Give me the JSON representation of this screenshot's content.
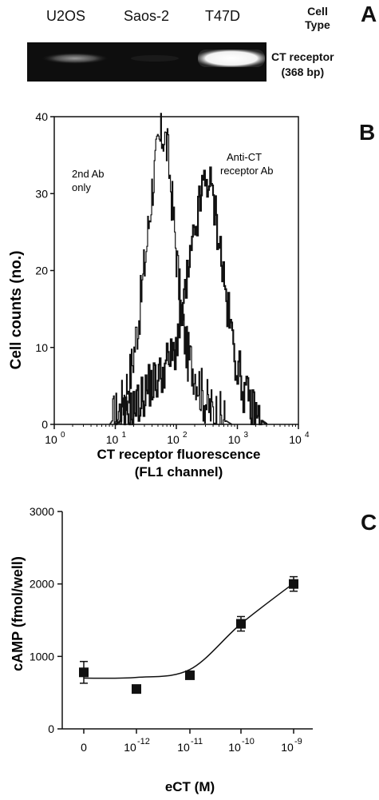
{
  "panel_a": {
    "letter": "A",
    "lanes": [
      "U2OS",
      "Saos-2",
      "T47D"
    ],
    "cell_type_label": [
      "Cell",
      "Type"
    ],
    "band_label": [
      "CT receptor",
      "(368 bp)"
    ],
    "band_intensity": [
      0.35,
      0.02,
      1.0
    ]
  },
  "panel_b": {
    "letter": "B",
    "ylabel": "Cell counts (no.)",
    "xlabel": [
      "CT receptor fluorescence",
      "(FL1 channel)"
    ],
    "annotation_left": [
      "2nd Ab",
      "only"
    ],
    "annotation_right": [
      "Anti-CT",
      "receptor Ab"
    ],
    "y_ticks": [
      "0",
      "10",
      "20",
      "30",
      "40"
    ],
    "x_tick_exponents": [
      "0",
      "1",
      "2",
      "3",
      "4"
    ]
  },
  "panel_c": {
    "letter": "C",
    "ylabel": "cAMP (fmol/well)",
    "xlabel": "eCT (M)",
    "y_ticks": [
      "0",
      "1000",
      "2000",
      "3000"
    ],
    "x_ticks": [
      {
        "base": "0",
        "exp": ""
      },
      {
        "base": "10",
        "exp": "-12"
      },
      {
        "base": "10",
        "exp": "-11"
      },
      {
        "base": "10",
        "exp": "-10"
      },
      {
        "base": "10",
        "exp": "-9"
      }
    ]
  },
  "chart_data": [
    {
      "type": "line",
      "xlabel": "CT receptor fluorescence (FL1 channel)",
      "ylabel": "Cell counts (no.)",
      "xscale": "log",
      "xlim": [
        1,
        10000
      ],
      "ylim": [
        0,
        40
      ],
      "grid": false,
      "series": [
        {
          "x": [
            8,
            12,
            18,
            25,
            32,
            40,
            50,
            60,
            70,
            80,
            95,
            120,
            150,
            200,
            260,
            350,
            500,
            800
          ],
          "y": [
            0,
            2,
            7,
            15,
            23,
            31,
            36,
            38,
            36,
            31,
            24,
            14,
            9,
            7,
            4,
            2,
            1,
            0
          ]
        },
        {
          "x": [
            10,
            15,
            25,
            35,
            50,
            70,
            90,
            120,
            160,
            210,
            270,
            330,
            400,
            500,
            650,
            900,
            1300,
            2000,
            3000
          ],
          "y": [
            0,
            1,
            3,
            5,
            6,
            8,
            9,
            14,
            20,
            26,
            31,
            32,
            29,
            24,
            16,
            9,
            4,
            1,
            0
          ]
        }
      ]
    },
    {
      "type": "scatter",
      "xlabel": "eCT (M)",
      "ylabel": "cAMP (fmol/well)",
      "ylim": [
        0,
        3000
      ],
      "grid": false,
      "x": [
        "0",
        "1e-12",
        "1e-11",
        "1e-10",
        "1e-9"
      ],
      "values": [
        780,
        550,
        740,
        1450,
        2000
      ],
      "errors": [
        150,
        20,
        40,
        100,
        100
      ],
      "fit": [
        700,
        710,
        820,
        1450,
        2010
      ]
    }
  ]
}
